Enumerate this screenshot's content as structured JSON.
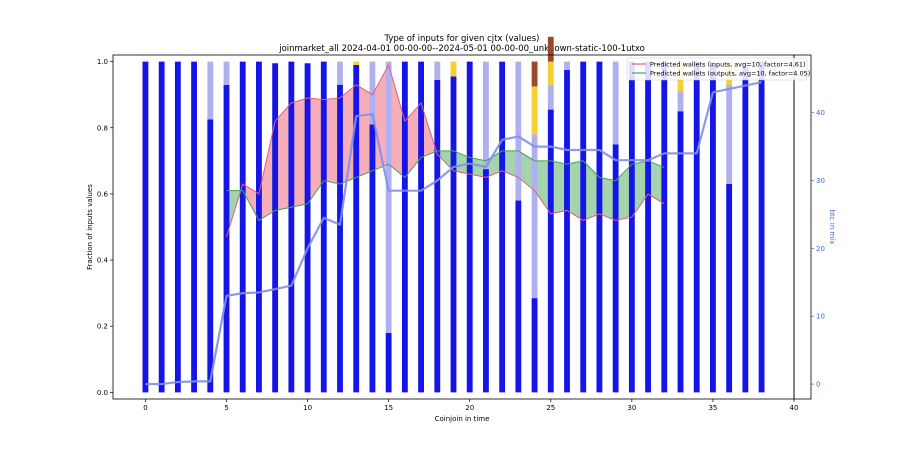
{
  "chart_data": {
    "type": "bar",
    "title": "Type of inputs for given cjtx (values)",
    "subtitle": "joinmarket_all 2024-04-01 00-00-00--2024-05-01 00-00-00_unknown-static-100-1utxo",
    "xlabel": "Coinjoin in time",
    "ylabel": "Fraction of inputs values",
    "y2label": "btc in mix",
    "xlim": [
      -2,
      40
    ],
    "ylim": [
      -0.02,
      1.02
    ],
    "y2lim": [
      -2.2,
      48.5
    ],
    "xticks": [
      0,
      5,
      10,
      15,
      20,
      25,
      30,
      35,
      40
    ],
    "yticks": [
      0.0,
      0.2,
      0.4,
      0.6,
      0.8,
      1.0
    ],
    "y2ticks": [
      0,
      10,
      20,
      30,
      40
    ],
    "colors": {
      "fresh": "#1515e8",
      "remix": "#b0b0f0",
      "yellow": "#f5d030",
      "brown": "#9a4a28",
      "inputs_line": "#e0607a",
      "inputs_fill": "#f4a0ac",
      "outputs_line": "#4aa05a",
      "outputs_fill": "#94cc9c",
      "btc_line": "#7f8fe6"
    },
    "stacked_series": [
      {
        "key": "fresh",
        "values": [
          1,
          1,
          1,
          1,
          0.825,
          0.93,
          1,
          1,
          0.995,
          1,
          0.995,
          1,
          0.93,
          0.99,
          0.81,
          0.18,
          1,
          1,
          0.945,
          0.955,
          1,
          0.675,
          1,
          0.58,
          0.285,
          0.855,
          0.975,
          1,
          1,
          0.75,
          1,
          1,
          1,
          0.85,
          1,
          0.99,
          0.63,
          0.985,
          1
        ]
      },
      {
        "key": "remix",
        "values": [
          0,
          0,
          0,
          0,
          0.175,
          0.07,
          0,
          0,
          0,
          0,
          0,
          0,
          0.07,
          0,
          0.19,
          0.82,
          0,
          0,
          0.055,
          0,
          0,
          0.325,
          0,
          0.42,
          0.495,
          0.075,
          0.025,
          0,
          0,
          0.25,
          0,
          0,
          0,
          0.06,
          0,
          0.01,
          0.3,
          0.015,
          0
        ]
      },
      {
        "key": "yellow",
        "values": [
          0,
          0,
          0,
          0,
          0,
          0,
          0,
          0,
          0,
          0,
          0,
          0,
          0,
          0.01,
          0,
          0,
          0,
          0,
          0,
          0.045,
          0,
          0,
          0,
          0,
          0.145,
          0.07,
          0,
          0,
          0,
          0,
          0,
          0,
          0,
          0.09,
          0,
          0,
          0.07,
          0,
          0
        ]
      },
      {
        "key": "brown",
        "values": [
          0,
          0,
          0,
          0,
          0,
          0,
          0,
          0,
          0,
          0,
          0,
          0,
          0,
          0,
          0,
          0,
          0,
          0,
          0,
          0,
          0,
          0,
          0,
          0,
          0.075,
          0.075,
          0,
          0,
          0,
          0,
          0,
          0,
          0,
          0,
          0,
          0,
          0,
          0,
          0
        ]
      }
    ],
    "inputs_line": {
      "name": "Predicted wallets (inputs, avg=10, factor=4.61)",
      "x": [
        5,
        6,
        7,
        8,
        9,
        10,
        11,
        12,
        13,
        14,
        15,
        16,
        17,
        18,
        19,
        20,
        21,
        22,
        23,
        24,
        25,
        26,
        27,
        28,
        29,
        30,
        31,
        32
      ],
      "values": [
        0.47,
        0.63,
        0.6,
        0.82,
        0.875,
        0.89,
        0.885,
        0.89,
        0.93,
        0.9,
        0.99,
        0.82,
        0.875,
        0.72,
        0.67,
        0.66,
        0.65,
        0.67,
        0.65,
        0.61,
        0.54,
        0.55,
        0.52,
        0.54,
        0.52,
        0.53,
        0.6,
        0.57
      ]
    },
    "outputs_line": {
      "name": "Predicted wallets (outputs, avg=10, factor=4.05)",
      "x": [
        5,
        6,
        7,
        8,
        9,
        10,
        11,
        12,
        13,
        14,
        15,
        16,
        17,
        18,
        19,
        20,
        21,
        22,
        23,
        24,
        25,
        26,
        27,
        28,
        29,
        30,
        31,
        32
      ],
      "values": [
        0.61,
        0.61,
        0.52,
        0.55,
        0.56,
        0.57,
        0.64,
        0.63,
        0.65,
        0.67,
        0.69,
        0.65,
        0.71,
        0.73,
        0.73,
        0.71,
        0.7,
        0.73,
        0.73,
        0.7,
        0.7,
        0.69,
        0.7,
        0.65,
        0.64,
        0.69,
        0.7,
        0.68
      ]
    },
    "btc_line": {
      "x": [
        0,
        1,
        2,
        3,
        4,
        5,
        6,
        7,
        8,
        9,
        10,
        11,
        12,
        13,
        14,
        15,
        16,
        17,
        18,
        19,
        20,
        21,
        22,
        23,
        24,
        25,
        26,
        27,
        28,
        29,
        30,
        31,
        32,
        33,
        34,
        35,
        36,
        37,
        38
      ],
      "values": [
        0,
        0,
        0.3,
        0.4,
        0.4,
        13,
        13.4,
        13.5,
        14,
        14.5,
        20,
        24.5,
        23.5,
        39.5,
        39.8,
        28.5,
        28.5,
        28.5,
        30,
        32,
        32.5,
        32,
        36,
        36.5,
        35,
        35,
        34.5,
        34.5,
        34.5,
        33,
        33,
        33,
        34,
        34,
        34,
        43,
        43.5,
        44,
        44.5
      ]
    },
    "legend_position": "upper-right"
  }
}
